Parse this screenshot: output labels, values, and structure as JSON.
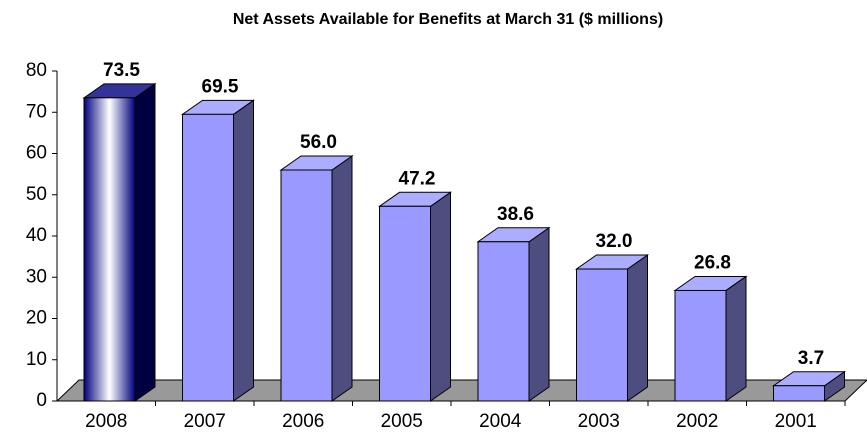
{
  "chart_data": {
    "type": "bar3d",
    "title": "Net Assets Available for Benefits at March 31 ($ millions)",
    "categories": [
      "2008",
      "2007",
      "2006",
      "2005",
      "2004",
      "2003",
      "2002",
      "2001"
    ],
    "values": [
      73.5,
      69.5,
      56.0,
      47.2,
      38.6,
      32.0,
      26.8,
      3.7
    ],
    "value_labels": [
      "73.5",
      "69.5",
      "56.0",
      "47.2",
      "38.6",
      "32.0",
      "26.8",
      "3.7"
    ],
    "colors": [
      "#000080",
      "#9999ff",
      "#9999ff",
      "#9999ff",
      "#9999ff",
      "#9999ff",
      "#9999ff",
      "#9999ff"
    ],
    "ylim": [
      0,
      80
    ],
    "yticks": [
      0,
      10,
      20,
      30,
      40,
      50,
      60,
      70,
      80
    ],
    "grid": false
  }
}
